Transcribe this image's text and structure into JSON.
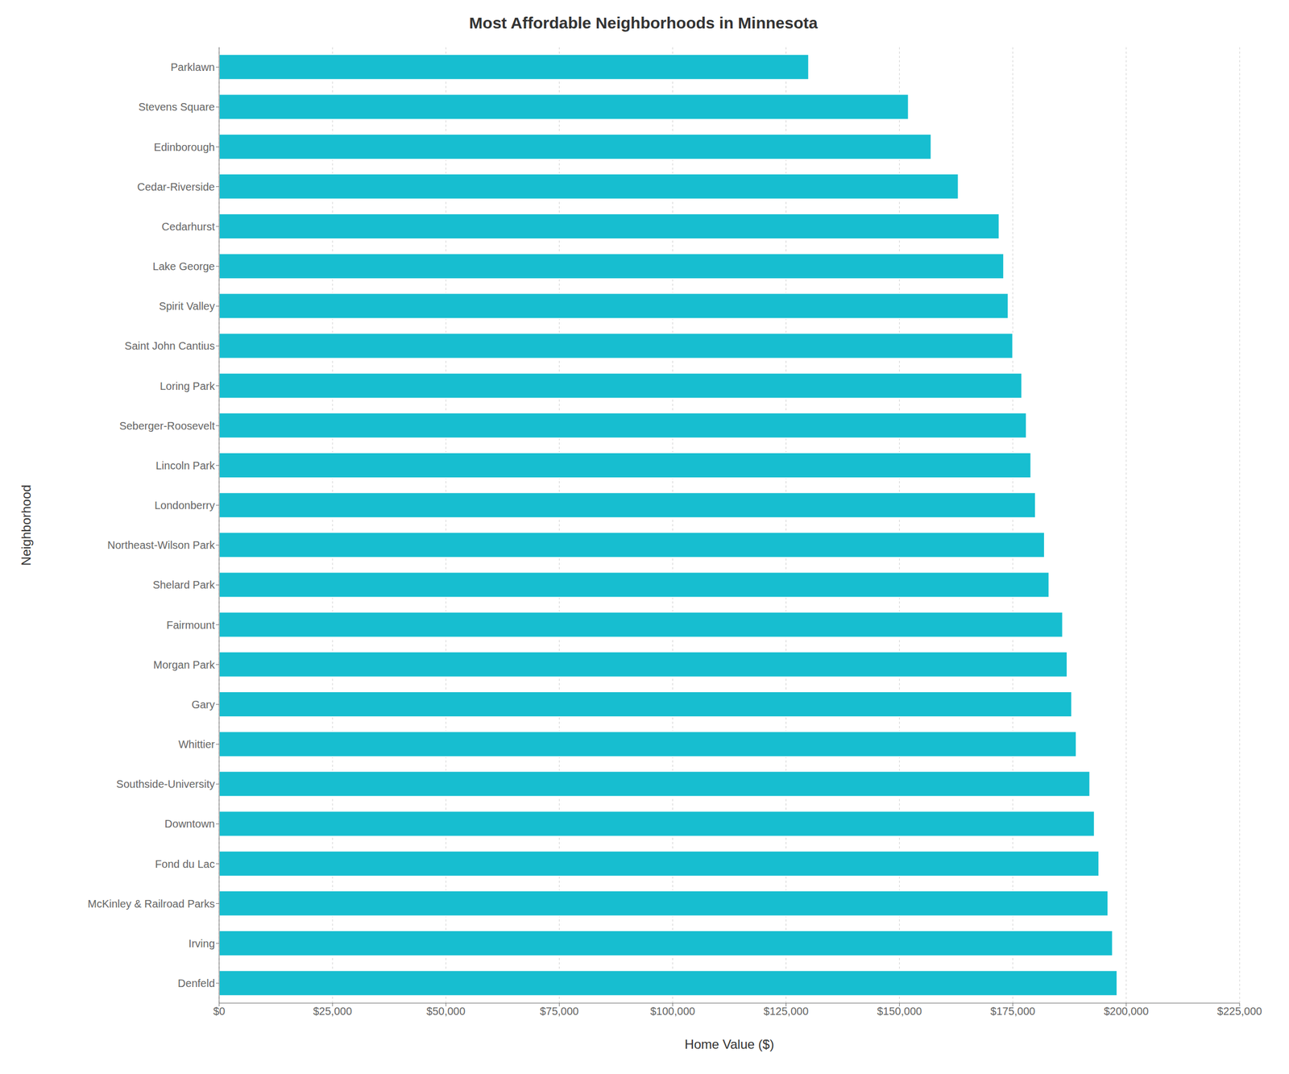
{
  "chart_data": {
    "type": "bar",
    "orientation": "horizontal",
    "title": "Most Affordable Neighborhoods in Minnesota",
    "xlabel": "Home Value ($)",
    "ylabel": "Neighborhood",
    "categories": [
      "Denfeld",
      "Irving",
      "McKinley & Railroad Parks",
      "Fond du Lac",
      "Downtown",
      "Southside-University",
      "Whittier",
      "Gary",
      "Morgan Park",
      "Fairmount",
      "Shelard Park",
      "Northeast-Wilson Park",
      "Londonberry",
      "Lincoln Park",
      "Seberger-Roosevelt",
      "Loring Park",
      "Saint John Cantius",
      "Spirit Valley",
      "Lake George",
      "Cedarhurst",
      "Cedar-Riverside",
      "Edinborough",
      "Stevens Square",
      "Parklawn"
    ],
    "values": [
      198000,
      197000,
      196000,
      194000,
      193000,
      192000,
      189000,
      188000,
      187000,
      186000,
      183000,
      182000,
      180000,
      179000,
      178000,
      177000,
      175000,
      174000,
      173000,
      172000,
      163000,
      157000,
      152000,
      130000
    ],
    "color": "#17BED0",
    "xlim": [
      0,
      225000
    ],
    "xticks": [
      {
        "value": 0,
        "label": "$0"
      },
      {
        "value": 25000,
        "label": "$25,000"
      },
      {
        "value": 50000,
        "label": "$50,000"
      },
      {
        "value": 75000,
        "label": "$75,000"
      },
      {
        "value": 100000,
        "label": "$100,000"
      },
      {
        "value": 125000,
        "label": "$125,000"
      },
      {
        "value": 150000,
        "label": "$150,000"
      },
      {
        "value": 175000,
        "label": "$175,000"
      },
      {
        "value": 200000,
        "label": "$200,000"
      },
      {
        "value": 225000,
        "label": "$225,000"
      }
    ],
    "grid": true
  }
}
